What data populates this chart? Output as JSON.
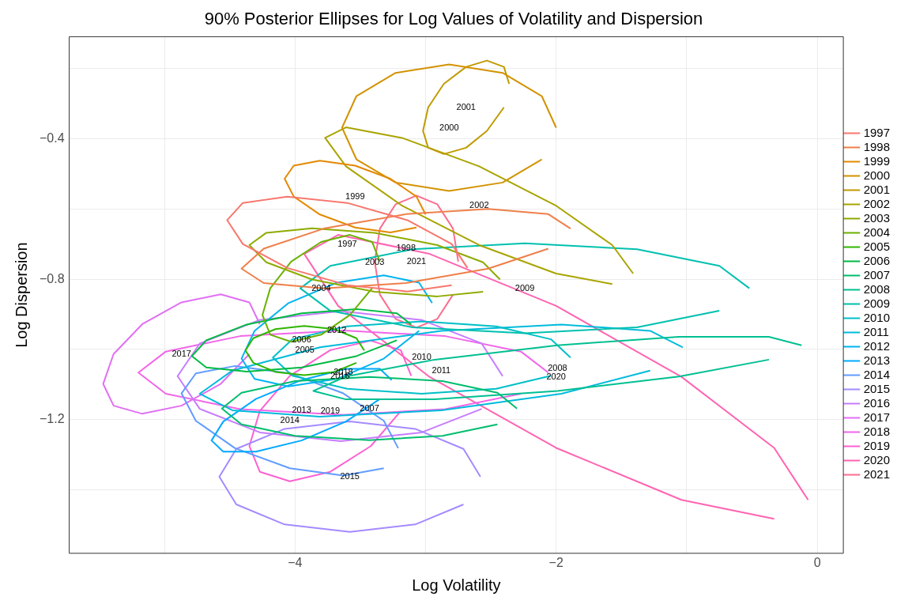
{
  "chart_data": {
    "type": "line",
    "title": "90% Posterior Ellipses for Log Values of Volatility and Dispersion",
    "xlabel": "Log Volatility",
    "ylabel": "Log Dispersion",
    "xlim": [
      -5.73,
      0.2
    ],
    "ylim": [
      -1.58,
      -0.11
    ],
    "xticks": [
      {
        "value": -5,
        "label": null
      },
      {
        "value": -4,
        "label": "−4"
      },
      {
        "value": -3,
        "label": null
      },
      {
        "value": -2,
        "label": "−2"
      },
      {
        "value": -1,
        "label": null
      },
      {
        "value": 0,
        "label": "0"
      }
    ],
    "yticks": [
      {
        "value": -1.4,
        "label": null
      },
      {
        "value": -1.2,
        "label": "−1.2"
      },
      {
        "value": -1.0,
        "label": null
      },
      {
        "value": -0.8,
        "label": "−0.8"
      },
      {
        "value": -0.6,
        "label": null
      },
      {
        "value": -0.4,
        "label": "−0.4"
      },
      {
        "value": -0.2,
        "label": null
      }
    ],
    "grid": true,
    "legend": "right",
    "marker": "none",
    "line_style": "solid",
    "series": [
      {
        "name": "1997",
        "color": "#f8766d",
        "x": [
          -2.68,
          -2.8,
          -3.14,
          -3.6,
          -4.06,
          -4.4,
          -4.52,
          -4.4,
          -4.06,
          -3.6,
          -3.14,
          -2.8
        ],
        "values": [
          -0.768,
          -0.7,
          -0.632,
          -0.583,
          -0.565,
          -0.583,
          -0.632,
          -0.7,
          -0.768,
          -0.817,
          -0.835,
          -0.817
        ]
      },
      {
        "name": "1998",
        "color": "#ef7f49",
        "x": [
          -1.89,
          -2.06,
          -2.52,
          -3.15,
          -3.78,
          -4.24,
          -4.41,
          -4.24,
          -3.78,
          -3.15,
          -2.52,
          -2.06
        ],
        "values": [
          -0.656,
          -0.615,
          -0.6,
          -0.615,
          -0.656,
          -0.713,
          -0.77,
          -0.811,
          -0.826,
          -0.811,
          -0.77,
          -0.713
        ]
      },
      {
        "name": "1999",
        "color": "#e38900",
        "x": [
          -3.0,
          -3.07,
          -3.27,
          -3.54,
          -3.81,
          -4.01,
          -4.08,
          -4.01,
          -3.81,
          -3.54,
          -3.27,
          -3.07
        ],
        "values": [
          -0.616,
          -0.565,
          -0.514,
          -0.477,
          -0.463,
          -0.477,
          -0.514,
          -0.565,
          -0.616,
          -0.653,
          -0.667,
          -0.653
        ]
      },
      {
        "name": "2000",
        "color": "#d39200",
        "x": [
          -2.0,
          -2.11,
          -2.41,
          -2.82,
          -3.23,
          -3.53,
          -3.64,
          -3.53,
          -3.23,
          -2.82,
          -2.41,
          -2.11
        ],
        "values": [
          -0.369,
          -0.279,
          -0.213,
          -0.189,
          -0.213,
          -0.279,
          -0.369,
          -0.459,
          -0.525,
          -0.549,
          -0.525,
          -0.459
        ]
      },
      {
        "name": "2001",
        "color": "#c09b00",
        "x": [
          -2.36,
          -2.4,
          -2.53,
          -2.69,
          -2.86,
          -2.98,
          -3.02,
          -2.98,
          -2.86,
          -2.69,
          -2.53,
          -2.4
        ],
        "values": [
          -0.244,
          -0.196,
          -0.178,
          -0.196,
          -0.244,
          -0.311,
          -0.378,
          -0.426,
          -0.444,
          -0.426,
          -0.378,
          -0.311
        ]
      },
      {
        "name": "2002",
        "color": "#a9a400",
        "x": [
          -1.41,
          -1.57,
          -2.0,
          -2.59,
          -3.18,
          -3.61,
          -3.77,
          -3.61,
          -3.18,
          -2.59,
          -2.0,
          -1.57
        ],
        "values": [
          -0.784,
          -0.703,
          -0.591,
          -0.479,
          -0.398,
          -0.368,
          -0.398,
          -0.479,
          -0.591,
          -0.703,
          -0.784,
          -0.814
        ]
      },
      {
        "name": "2003",
        "color": "#8eab00",
        "x": [
          -2.43,
          -2.56,
          -2.91,
          -3.39,
          -3.87,
          -4.22,
          -4.35,
          -4.22,
          -3.87,
          -3.39,
          -2.91,
          -2.56
        ],
        "values": [
          -0.801,
          -0.752,
          -0.703,
          -0.668,
          -0.655,
          -0.668,
          -0.703,
          -0.752,
          -0.801,
          -0.836,
          -0.849,
          -0.836
        ]
      },
      {
        "name": "2004",
        "color": "#6bb100",
        "x": [
          -3.35,
          -3.41,
          -3.58,
          -3.8,
          -4.03,
          -4.19,
          -4.25,
          -4.19,
          -4.03,
          -3.8,
          -3.58,
          -3.41
        ],
        "values": [
          -0.75,
          -0.694,
          -0.674,
          -0.694,
          -0.75,
          -0.826,
          -0.902,
          -0.958,
          -0.978,
          -0.958,
          -0.902,
          -0.826
        ]
      },
      {
        "name": "2005",
        "color": "#2fb600",
        "x": [
          -3.47,
          -3.53,
          -3.7,
          -3.93,
          -4.15,
          -4.32,
          -4.38,
          -4.32,
          -4.15,
          -3.93,
          -3.7,
          -3.53
        ],
        "values": [
          -1.003,
          -0.968,
          -0.942,
          -0.933,
          -0.942,
          -0.968,
          -1.003,
          -1.038,
          -1.064,
          -1.073,
          -1.064,
          -1.038
        ]
      },
      {
        "name": "2006",
        "color": "#00ba42",
        "x": [
          -3.11,
          -3.22,
          -3.53,
          -3.95,
          -4.37,
          -4.68,
          -4.79,
          -4.68,
          -4.37,
          -3.95,
          -3.53,
          -3.22
        ],
        "values": [
          -0.929,
          -0.897,
          -0.885,
          -0.897,
          -0.929,
          -0.974,
          -1.019,
          -1.051,
          -1.063,
          -1.051,
          -1.019,
          -0.974
        ]
      },
      {
        "name": "2007",
        "color": "#00bd6e",
        "x": [
          -2.3,
          -2.45,
          -2.87,
          -3.43,
          -4.0,
          -4.41,
          -4.56,
          -4.41,
          -4.0,
          -3.43,
          -2.87,
          -2.45
        ],
        "values": [
          -1.168,
          -1.123,
          -1.09,
          -1.078,
          -1.09,
          -1.123,
          -1.168,
          -1.213,
          -1.246,
          -1.258,
          -1.246,
          -1.213
        ]
      },
      {
        "name": "2008",
        "color": "#00bf91",
        "x": [
          -0.12,
          -0.37,
          -1.06,
          -1.99,
          -2.93,
          -3.61,
          -3.86,
          -3.61,
          -2.93,
          -1.99,
          -1.06,
          -0.37
        ],
        "values": [
          -0.988,
          -0.964,
          -0.964,
          -0.988,
          -1.029,
          -1.077,
          -1.118,
          -1.142,
          -1.142,
          -1.118,
          -1.077,
          -1.029
        ]
      },
      {
        "name": "2009",
        "color": "#00c0af",
        "x": [
          -0.52,
          -0.75,
          -1.38,
          -2.24,
          -3.1,
          -3.73,
          -3.96,
          -3.73,
          -3.1,
          -2.24,
          -1.38,
          -0.75
        ],
        "values": [
          -0.826,
          -0.762,
          -0.715,
          -0.698,
          -0.715,
          -0.762,
          -0.826,
          -0.89,
          -0.937,
          -0.954,
          -0.937,
          -0.89
        ]
      },
      {
        "name": "2010",
        "color": "#00bfc8",
        "x": [
          -1.89,
          -2.04,
          -2.46,
          -3.03,
          -3.6,
          -4.02,
          -4.17,
          -4.02,
          -3.6,
          -3.03,
          -2.46,
          -2.04
        ],
        "values": [
          -1.023,
          -0.971,
          -0.934,
          -0.92,
          -0.934,
          -0.971,
          -1.023,
          -1.075,
          -1.112,
          -1.126,
          -1.112,
          -1.075
        ]
      },
      {
        "name": "2011",
        "color": "#00bbdc",
        "x": [
          -1.03,
          -1.28,
          -1.96,
          -2.88,
          -3.81,
          -4.48,
          -4.73,
          -4.48,
          -3.81,
          -2.88,
          -1.96,
          -1.28
        ],
        "values": [
          -0.994,
          -0.947,
          -0.929,
          -0.947,
          -0.994,
          -1.06,
          -1.126,
          -1.173,
          -1.191,
          -1.173,
          -1.126,
          -1.06
        ]
      },
      {
        "name": "2012",
        "color": "#00b4ef",
        "x": [
          -2.95,
          -3.05,
          -3.32,
          -3.68,
          -4.05,
          -4.31,
          -4.41,
          -4.31,
          -4.05,
          -3.68,
          -3.32,
          -3.05
        ],
        "values": [
          -0.868,
          -0.81,
          -0.789,
          -0.81,
          -0.868,
          -0.947,
          -1.026,
          -1.084,
          -1.105,
          -1.084,
          -1.026,
          -0.947
        ]
      },
      {
        "name": "2013",
        "color": "#00a9ff",
        "x": [
          -3.26,
          -3.35,
          -3.61,
          -3.95,
          -4.3,
          -4.55,
          -4.64,
          -4.55,
          -4.3,
          -3.95,
          -3.61,
          -3.35
        ],
        "values": [
          -1.087,
          -1.055,
          -1.055,
          -1.087,
          -1.141,
          -1.205,
          -1.259,
          -1.291,
          -1.291,
          -1.259,
          -1.205,
          -1.141
        ]
      },
      {
        "name": "2014",
        "color": "#619cff",
        "x": [
          -3.21,
          -3.32,
          -3.63,
          -4.04,
          -4.46,
          -4.76,
          -4.87,
          -4.76,
          -4.46,
          -4.04,
          -3.63,
          -3.32
        ],
        "values": [
          -1.281,
          -1.203,
          -1.125,
          -1.068,
          -1.047,
          -1.068,
          -1.125,
          -1.203,
          -1.281,
          -1.338,
          -1.359,
          -1.338
        ]
      },
      {
        "name": "2015",
        "color": "#a58aff",
        "x": [
          -2.58,
          -2.71,
          -3.08,
          -3.58,
          -4.08,
          -4.45,
          -4.58,
          -4.45,
          -4.08,
          -3.58,
          -3.08,
          -2.71
        ],
        "values": [
          -1.362,
          -1.283,
          -1.226,
          -1.205,
          -1.226,
          -1.283,
          -1.362,
          -1.441,
          -1.498,
          -1.519,
          -1.498,
          -1.441
        ]
      },
      {
        "name": "2016",
        "color": "#c77cff",
        "x": [
          -2.41,
          -2.57,
          -3.03,
          -3.65,
          -4.27,
          -4.73,
          -4.9,
          -4.73,
          -4.27,
          -3.65,
          -3.03,
          -2.57
        ],
        "values": [
          -1.076,
          -0.983,
          -0.916,
          -0.891,
          -0.916,
          -0.983,
          -1.076,
          -1.169,
          -1.236,
          -1.261,
          -1.236,
          -1.169
        ]
      },
      {
        "name": "2017",
        "color": "#e16ff4",
        "x": [
          -4.27,
          -4.35,
          -4.57,
          -4.87,
          -5.17,
          -5.39,
          -5.47,
          -5.39,
          -5.17,
          -4.87,
          -4.57,
          -4.35
        ],
        "values": [
          -0.928,
          -0.866,
          -0.843,
          -0.866,
          -0.928,
          -1.013,
          -1.098,
          -1.16,
          -1.183,
          -1.16,
          -1.098,
          -1.013
        ]
      },
      {
        "name": "2018",
        "color": "#f166e8",
        "x": [
          -2.06,
          -2.27,
          -2.85,
          -3.63,
          -4.42,
          -4.99,
          -5.2,
          -4.99,
          -4.42,
          -3.63,
          -2.85,
          -2.27
        ],
        "values": [
          -1.066,
          -1.006,
          -0.962,
          -0.946,
          -0.962,
          -1.006,
          -1.066,
          -1.126,
          -1.17,
          -1.186,
          -1.17,
          -1.126
        ]
      },
      {
        "name": "2019",
        "color": "#fd61d1",
        "x": [
          -3.11,
          -3.19,
          -3.42,
          -3.73,
          -4.04,
          -4.27,
          -4.35,
          -4.27,
          -4.04,
          -3.73,
          -3.42,
          -3.19
        ],
        "values": [
          -1.075,
          -1.002,
          -0.975,
          -1.002,
          -1.075,
          -1.175,
          -1.275,
          -1.348,
          -1.375,
          -1.348,
          -1.275,
          -1.175
        ]
      },
      {
        "name": "2020",
        "color": "#ff64b2",
        "x": [
          -0.07,
          -0.33,
          -1.04,
          -2.0,
          -2.97,
          -3.67,
          -3.93,
          -3.67,
          -2.97,
          -2.0,
          -1.04,
          -0.33
        ],
        "values": [
          -1.428,
          -1.28,
          -1.078,
          -0.876,
          -0.728,
          -0.674,
          -0.728,
          -0.876,
          -1.078,
          -1.28,
          -1.428,
          -1.482
        ]
      },
      {
        "name": "2021",
        "color": "#fc6d8f",
        "x": [
          -2.75,
          -2.79,
          -2.91,
          -3.07,
          -3.23,
          -3.35,
          -3.39,
          -3.35,
          -3.23,
          -3.07,
          -2.91,
          -2.79
        ],
        "values": [
          -0.75,
          -0.656,
          -0.587,
          -0.562,
          -0.587,
          -0.656,
          -0.75,
          -0.844,
          -0.913,
          -0.938,
          -0.913,
          -0.844
        ]
      }
    ],
    "annotations": [
      "1997",
      "1998",
      "1999",
      "2000",
      "2001",
      "2002",
      "2003",
      "2004",
      "2005",
      "2006",
      "2007",
      "2008",
      "2009",
      "2010",
      "2011",
      "2012",
      "2013",
      "2014",
      "2015",
      "2016",
      "2017",
      "2018",
      "2019",
      "2020",
      "2021"
    ]
  }
}
